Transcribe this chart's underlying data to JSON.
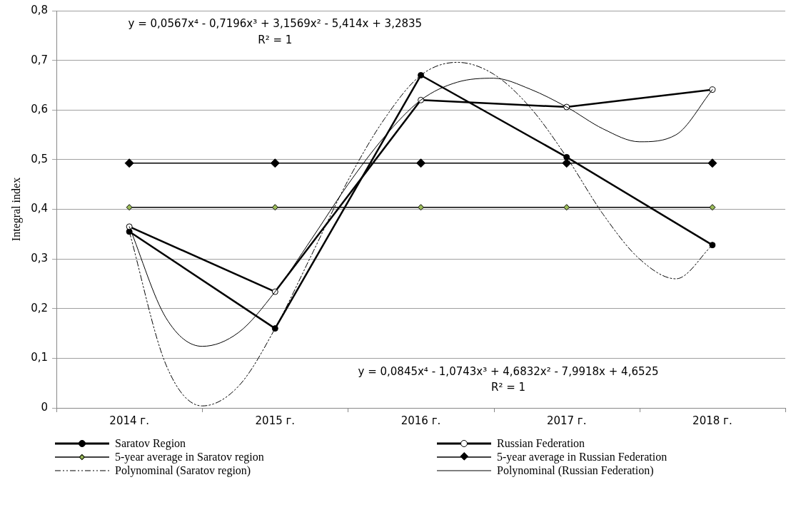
{
  "chart_data": {
    "type": "line",
    "ylabel": "Integral index",
    "x": [
      2014,
      2015,
      2016,
      2017,
      2018
    ],
    "xlim": [
      2013.5,
      2018.5
    ],
    "xticks": [
      {
        "value": 2013.5,
        "label": null
      },
      {
        "value": 2014,
        "label": "2014 г."
      },
      {
        "value": 2014.5,
        "label": null
      },
      {
        "value": 2015,
        "label": "2015 г."
      },
      {
        "value": 2015.5,
        "label": null
      },
      {
        "value": 2016,
        "label": "2016 г."
      },
      {
        "value": 2016.5,
        "label": null
      },
      {
        "value": 2017,
        "label": "2017 г."
      },
      {
        "value": 2017.5,
        "label": null
      },
      {
        "value": 2018,
        "label": "2018 г."
      },
      {
        "value": 2018.5,
        "label": null
      }
    ],
    "ylim": [
      0,
      0.8
    ],
    "yticks": [
      0,
      {
        "value": 0.1,
        "label": "0,1"
      },
      {
        "value": 0.2,
        "label": "0,2"
      },
      {
        "value": 0.3,
        "label": "0,3"
      },
      {
        "value": 0.4,
        "label": "0,4"
      },
      {
        "value": 0.5,
        "label": "0,5"
      },
      {
        "value": 0.6,
        "label": "0,6"
      },
      {
        "value": 0.7,
        "label": "0,7"
      },
      {
        "value": 0.8,
        "label": "0,8"
      }
    ],
    "grid": "y",
    "legend": "bottom",
    "line_style": "solid",
    "series": [
      {
        "name": "Saratov Region",
        "color": "#000000",
        "marker": "circle",
        "values": [
          0.355,
          0.16,
          0.67,
          0.505,
          0.328
        ]
      },
      {
        "name": "Russian Federation",
        "color": "#000000",
        "colors": [
          "#ffffff",
          "#ffffff",
          "#ffffff",
          "#ffffff",
          "#ffffff"
        ],
        "marker": "circle",
        "values": [
          0.365,
          0.234,
          0.62,
          0.606,
          0.641
        ]
      },
      {
        "name": "5-year average in Saratov region",
        "color": "#000000",
        "colors": [
          "#9bbb59",
          "#9bbb59",
          "#9bbb59",
          "#9bbb59",
          "#9bbb59"
        ],
        "marker": "diamond",
        "values": [
          0.404,
          0.404,
          0.404,
          0.404,
          0.404
        ]
      },
      {
        "name": "5-year average in Russian Federation",
        "color": "#000000",
        "marker": "diamond",
        "values": [
          0.493,
          0.493,
          0.493,
          0.493,
          0.493
        ]
      },
      {
        "name": "Polynominal (Saratov region)",
        "color": "#000000",
        "marker": "none",
        "line_style": "dashed",
        "x": [
          2014,
          2014.25,
          2014.5,
          2014.75,
          2015,
          2015.25,
          2015.5,
          2015.75,
          2016,
          2016.25,
          2016.5,
          2016.75,
          2017,
          2017.25,
          2017.5,
          2017.75,
          2018
        ],
        "values": [
          0.355,
          0.088,
          0.004,
          0.044,
          0.16,
          0.308,
          0.458,
          0.582,
          0.67,
          0.696,
          0.672,
          0.605,
          0.505,
          0.39,
          0.3,
          0.26,
          0.328
        ]
      },
      {
        "name": "Polynominal (Russian Federation)",
        "color": "#000000",
        "marker": "none",
        "x": [
          2014,
          2014.25,
          2014.5,
          2014.75,
          2015,
          2015.25,
          2015.5,
          2015.75,
          2016,
          2016.25,
          2016.5,
          2016.75,
          2017,
          2017.25,
          2017.5,
          2017.75,
          2018
        ],
        "values": [
          0.365,
          0.182,
          0.124,
          0.152,
          0.234,
          0.34,
          0.45,
          0.546,
          0.62,
          0.656,
          0.664,
          0.642,
          0.606,
          0.562,
          0.536,
          0.55,
          0.641
        ]
      }
    ],
    "annotations": [
      "y = 0,0567x⁴ - 0,7196x³ + 3,1569x² - 5,414x + 3,2835",
      "R² = 1",
      "y = 0,0845x⁴ - 1,0743x³ + 4,6832x² - 7,9918x + 4,6525",
      "R² = 1"
    ]
  }
}
